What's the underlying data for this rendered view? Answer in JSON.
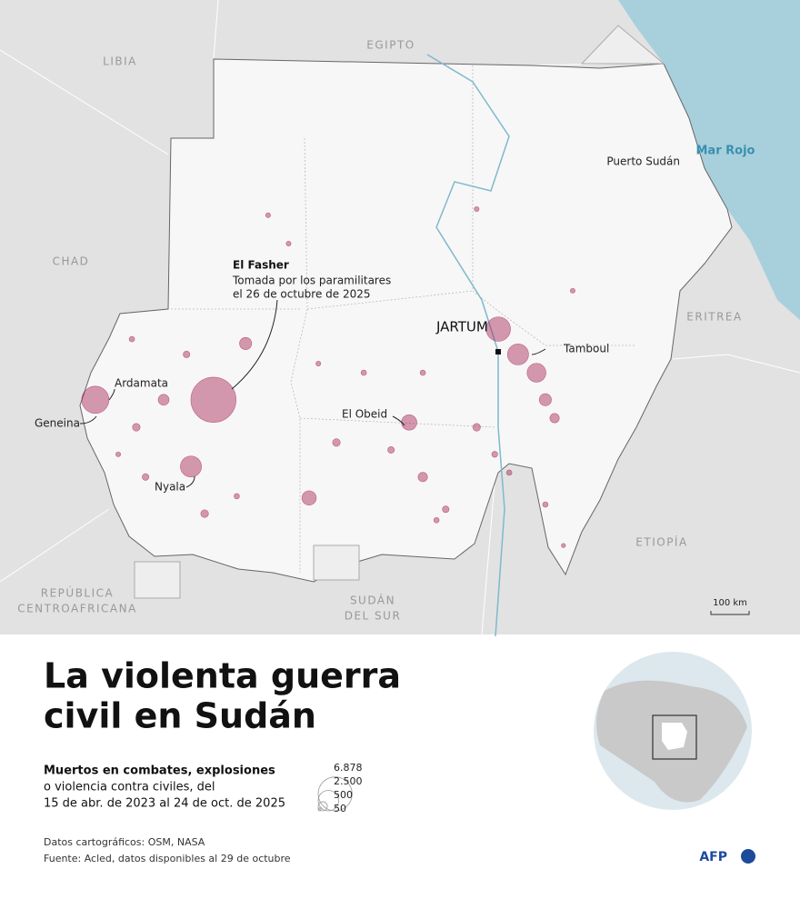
{
  "title": [
    "La violenta guerra",
    "civil en Sudán"
  ],
  "subtitle": [
    "Muertos en combates, explosiones",
    "o violencia contra civiles, del",
    "15 de abr. de 2023 al 24 de oct. de 2025"
  ],
  "sources": [
    "Datos cartográficos: OSM, NASA",
    "Fuente: Acled, datos disponibles al 29 de octubre"
  ],
  "logo": "AFP",
  "map": {
    "countries": [
      "LIBIA",
      "EGIPTO",
      "CHAD",
      "ERITREA",
      "ETIOPÍA",
      [
        "REPÚBLICA",
        "CENTROAFRICANA"
      ],
      [
        "SUDÁN",
        "DEL SUR"
      ]
    ],
    "sea": "Mar Rojo",
    "cities": [
      "Puerto Sudán",
      "JARTUM",
      "Tamboul",
      "El Obeid",
      "Ardamata",
      "Geneina",
      "Nyala"
    ],
    "annotation": {
      "title": "El Fasher",
      "text": [
        "Tomada por los paramilitares",
        "el 26 de octubre de 2025"
      ]
    },
    "scale": "100 km"
  },
  "chart_data": {
    "type": "bubble-map",
    "color": "#a3224f",
    "events": {
      "lon": [
        25.5,
        22.56,
        24.94,
        32.59,
        33.08,
        33.54,
        30.37,
        27.88,
        26.3,
        24.26,
        33.76,
        30.71,
        33.99,
        23.58,
        28.56,
        29.92,
        31.28,
        23.81,
        26.86,
        27.37,
        32.05,
        34.44,
        24.83,
        23.47,
        25.28,
        29.24,
        32.86,
        33.76,
        34.21,
        30.71,
        28.11,
        26.08,
        32.05,
        32.5,
        31.05,
        23.13
      ],
      "lat": [
        14.5,
        14.5,
        12.97,
        16.12,
        15.54,
        15.12,
        13.98,
        12.25,
        15.79,
        14.5,
        14.5,
        12.73,
        14.08,
        13.87,
        13.52,
        13.35,
        11.99,
        12.73,
        18.73,
        18.08,
        18.87,
        17.0,
        15.54,
        15.89,
        11.89,
        15.12,
        12.83,
        12.1,
        11.16,
        15.12,
        15.33,
        12.29,
        13.87,
        13.25,
        11.74,
        13.25
      ],
      "values": [
        6878,
        2500,
        1500,
        2000,
        1500,
        1200,
        800,
        700,
        500,
        400,
        500,
        300,
        300,
        200,
        200,
        150,
        150,
        150,
        80,
        80,
        80,
        80,
        150,
        100,
        200,
        100,
        100,
        100,
        60,
        100,
        80,
        100,
        200,
        120,
        100,
        80
      ]
    },
    "size_legend": [
      {
        "value": 6878,
        "label": "6.878"
      },
      {
        "value": 2500,
        "label": "2.500"
      },
      500,
      50
    ]
  }
}
